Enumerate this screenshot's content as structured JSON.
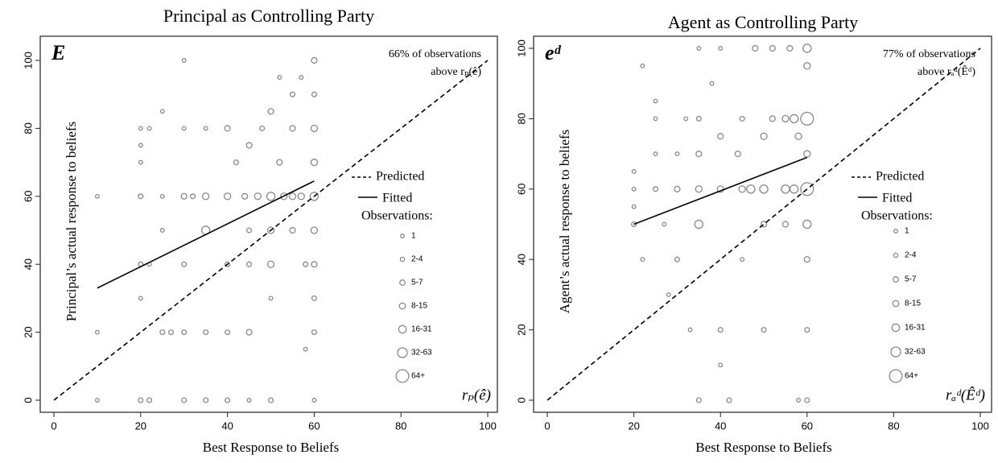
{
  "chart_data": [
    {
      "type": "scatter",
      "title": "Principal as Controlling Party",
      "corner_label": "E",
      "annotation": [
        "66% of observations",
        "above rₚ(ê)"
      ],
      "axis_note": "rₚ(ê)",
      "x_label": "Best Response to Beliefs",
      "y_label": "Principal’s actual response to beliefs",
      "xlim": [
        0,
        100
      ],
      "ylim": [
        0,
        100
      ],
      "xticks": [
        0,
        20,
        40,
        60,
        80,
        100
      ],
      "yticks": [
        0,
        20,
        40,
        60,
        80,
        100
      ],
      "predicted": {
        "name": "Predicted",
        "x": [
          0,
          100
        ],
        "y": [
          0,
          100
        ]
      },
      "fitted": {
        "name": "Fitted",
        "x": [
          10,
          60
        ],
        "y": [
          33,
          64.5
        ]
      },
      "legend_title": "Observations:",
      "size_legend": [
        {
          "label": "1",
          "count": 1
        },
        {
          "label": "2-4",
          "count": 2
        },
        {
          "label": "5-7",
          "count": 5
        },
        {
          "label": "8-15",
          "count": 8
        },
        {
          "label": "16-31",
          "count": 16
        },
        {
          "label": "32-63",
          "count": 32
        },
        {
          "label": "64+",
          "count": 64
        }
      ],
      "points": {
        "x": [
          10,
          10,
          10,
          20,
          20,
          20,
          20,
          20,
          20,
          20,
          22,
          22,
          22,
          25,
          25,
          25,
          25,
          27,
          30,
          30,
          30,
          30,
          30,
          30,
          32,
          35,
          35,
          35,
          35,
          35,
          40,
          40,
          40,
          40,
          40,
          42,
          44,
          45,
          45,
          45,
          45,
          45,
          47,
          48,
          50,
          50,
          50,
          50,
          50,
          50,
          52,
          52,
          53,
          55,
          55,
          55,
          55,
          57,
          57,
          58,
          58,
          60,
          60,
          60,
          60,
          60,
          60,
          60,
          60,
          60,
          60
        ],
        "y": [
          60,
          20,
          0,
          80,
          75,
          70,
          60,
          40,
          30,
          0,
          0,
          80,
          40,
          85,
          60,
          50,
          20,
          20,
          100,
          80,
          60,
          40,
          20,
          0,
          60,
          60,
          50,
          80,
          20,
          0,
          80,
          60,
          40,
          20,
          0,
          70,
          60,
          75,
          50,
          40,
          20,
          0,
          60,
          80,
          85,
          60,
          50,
          40,
          30,
          0,
          95,
          70,
          60,
          90,
          80,
          60,
          50,
          95,
          60,
          40,
          15,
          100,
          90,
          80,
          70,
          60,
          50,
          40,
          30,
          20,
          0
        ],
        "counts": [
          1,
          1,
          1,
          1,
          1,
          1,
          3,
          3,
          1,
          3,
          3,
          1,
          1,
          1,
          1,
          1,
          3,
          3,
          1,
          1,
          6,
          3,
          3,
          3,
          3,
          10,
          20,
          1,
          3,
          3,
          6,
          10,
          3,
          3,
          3,
          3,
          6,
          6,
          3,
          3,
          6,
          1,
          10,
          3,
          6,
          20,
          10,
          10,
          1,
          3,
          1,
          6,
          10,
          3,
          6,
          10,
          6,
          1,
          10,
          3,
          1,
          6,
          3,
          10,
          10,
          20,
          10,
          6,
          3,
          3,
          1
        ]
      }
    },
    {
      "type": "scatter",
      "title": "Agent as Controlling Party",
      "corner_label": "eᵈ",
      "annotation": [
        "77% of observations",
        "above rₐᵈ(Êᵈ)"
      ],
      "axis_note": "rₐᵈ(Êᵈ)",
      "x_label": "Best Response to Beliefs",
      "y_label": "Agent’s actual response to beliefs",
      "xlim": [
        0,
        100
      ],
      "ylim": [
        0,
        100
      ],
      "xticks": [
        0,
        20,
        40,
        60,
        80,
        100
      ],
      "yticks": [
        0,
        20,
        40,
        60,
        80,
        100
      ],
      "predicted": {
        "name": "Predicted",
        "x": [
          0,
          100
        ],
        "y": [
          0,
          100
        ]
      },
      "fitted": {
        "name": "Fitted",
        "x": [
          20,
          60
        ],
        "y": [
          50,
          69
        ]
      },
      "legend_title": "Observations:",
      "size_legend": [
        {
          "label": "1",
          "count": 1
        },
        {
          "label": "2-4",
          "count": 2
        },
        {
          "label": "5-7",
          "count": 5
        },
        {
          "label": "8-15",
          "count": 8
        },
        {
          "label": "16-31",
          "count": 16
        },
        {
          "label": "32-63",
          "count": 32
        },
        {
          "label": "64+",
          "count": 64
        }
      ],
      "points": {
        "x": [
          20,
          20,
          20,
          20,
          22,
          22,
          25,
          25,
          25,
          25,
          27,
          28,
          30,
          30,
          30,
          32,
          33,
          35,
          35,
          35,
          35,
          35,
          35,
          38,
          40,
          40,
          40,
          40,
          40,
          42,
          44,
          45,
          45,
          45,
          47,
          48,
          50,
          50,
          50,
          50,
          52,
          52,
          55,
          55,
          55,
          56,
          57,
          57,
          58,
          58,
          60,
          60,
          60,
          60,
          60,
          60,
          60,
          60,
          60
        ],
        "y": [
          65,
          60,
          55,
          50,
          95,
          40,
          85,
          80,
          70,
          60,
          50,
          30,
          70,
          60,
          40,
          80,
          20,
          100,
          80,
          70,
          60,
          50,
          0,
          90,
          100,
          75,
          60,
          20,
          10,
          0,
          70,
          80,
          60,
          40,
          60,
          100,
          75,
          60,
          50,
          20,
          80,
          100,
          80,
          60,
          50,
          100,
          80,
          60,
          75,
          0,
          100,
          95,
          80,
          70,
          60,
          50,
          40,
          20,
          0
        ],
        "counts": [
          1,
          1,
          1,
          3,
          1,
          1,
          1,
          1,
          1,
          3,
          1,
          1,
          1,
          6,
          3,
          1,
          1,
          1,
          3,
          6,
          10,
          20,
          3,
          1,
          1,
          6,
          10,
          3,
          1,
          3,
          6,
          3,
          10,
          1,
          20,
          6,
          10,
          20,
          6,
          3,
          6,
          6,
          10,
          20,
          6,
          6,
          20,
          20,
          10,
          1,
          20,
          10,
          64,
          10,
          64,
          20,
          6,
          3,
          3
        ]
      }
    }
  ]
}
